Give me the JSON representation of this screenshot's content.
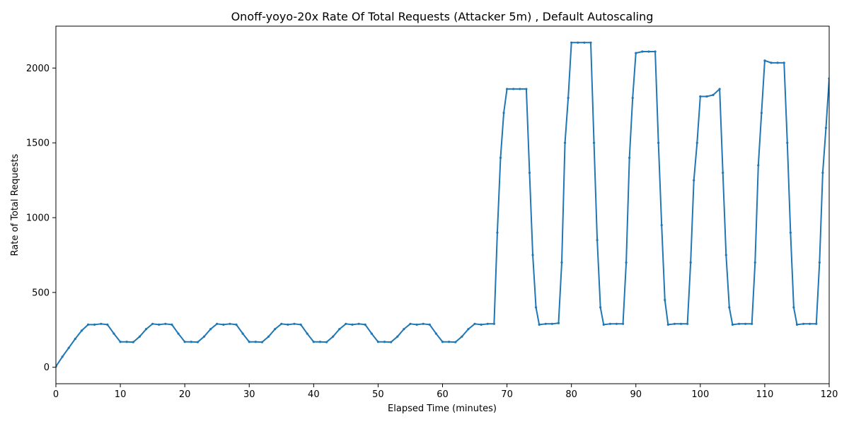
{
  "chart_data": {
    "type": "line",
    "title": "Onoff-yoyo-20x Rate Of Total Requests (Attacker 5m) , Default Autoscaling",
    "xlabel": "Elapsed Time (minutes)",
    "ylabel": "Rate of Total Requests",
    "xlim": [
      0,
      120
    ],
    "ylim": [
      -110,
      2280
    ],
    "xticks": [
      0,
      10,
      20,
      30,
      40,
      50,
      60,
      70,
      80,
      90,
      100,
      110,
      120
    ],
    "yticks": [
      0,
      500,
      1000,
      1500,
      2000
    ],
    "grid": false,
    "legend": "none",
    "line_color": "#1f77b4",
    "series": [
      {
        "x": [
          0,
          1,
          2,
          3,
          4,
          5,
          6,
          7,
          8,
          9,
          10,
          11,
          12,
          13,
          14,
          15,
          16,
          17,
          18,
          19,
          20,
          21,
          22,
          23,
          24,
          25,
          26,
          27,
          28,
          29,
          30,
          31,
          32,
          33,
          34,
          35,
          36,
          37,
          38,
          39,
          40,
          41,
          42,
          43,
          44,
          45,
          46,
          47,
          48,
          49,
          50,
          51,
          52,
          53,
          54,
          55,
          56,
          57,
          58,
          59,
          60,
          61,
          62,
          63,
          64,
          65,
          66,
          67,
          68,
          68.5,
          69,
          69.5,
          70,
          71,
          72,
          73,
          73.5,
          74,
          74.5,
          75,
          76,
          77,
          78,
          78.5,
          79,
          79.5,
          80,
          81,
          82,
          83,
          83.5,
          84,
          84.5,
          85,
          86,
          87,
          88,
          88.5,
          89,
          89.5,
          90,
          91,
          92,
          93,
          93.5,
          94,
          94.5,
          95,
          96,
          97,
          98,
          98.5,
          99,
          99.5,
          100,
          101,
          102,
          103,
          103.5,
          104,
          104.5,
          105,
          106,
          107,
          108,
          108.5,
          109,
          109.5,
          110,
          111,
          112,
          113,
          113.5,
          114,
          114.5,
          115,
          116,
          117,
          118,
          118.5,
          119,
          119.5,
          120
        ],
        "y": [
          5,
          70,
          130,
          190,
          245,
          285,
          285,
          290,
          285,
          225,
          170,
          170,
          168,
          205,
          255,
          290,
          285,
          290,
          285,
          225,
          170,
          170,
          168,
          205,
          255,
          290,
          285,
          290,
          285,
          225,
          170,
          170,
          168,
          205,
          255,
          290,
          285,
          290,
          285,
          225,
          170,
          170,
          168,
          205,
          255,
          290,
          285,
          290,
          285,
          225,
          170,
          170,
          168,
          205,
          255,
          290,
          285,
          290,
          285,
          225,
          170,
          170,
          168,
          205,
          255,
          290,
          285,
          290,
          290,
          900,
          1400,
          1700,
          1860,
          1860,
          1860,
          1860,
          1300,
          750,
          400,
          285,
          290,
          290,
          295,
          700,
          1500,
          1800,
          2170,
          2170,
          2170,
          2170,
          1500,
          850,
          400,
          285,
          290,
          290,
          290,
          700,
          1400,
          1800,
          2100,
          2110,
          2110,
          2110,
          1500,
          950,
          450,
          285,
          290,
          290,
          290,
          700,
          1250,
          1500,
          1810,
          1810,
          1820,
          1860,
          1300,
          750,
          400,
          285,
          290,
          290,
          290,
          700,
          1350,
          1700,
          2050,
          2035,
          2035,
          2035,
          1500,
          900,
          400,
          285,
          290,
          290,
          290,
          700,
          1300,
          1600,
          1930
        ]
      }
    ]
  }
}
